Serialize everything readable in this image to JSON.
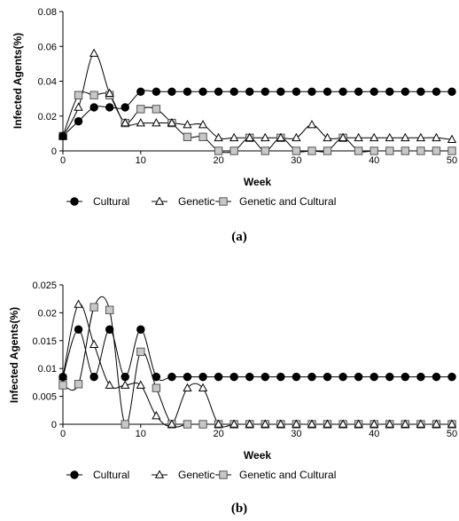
{
  "chart_data": [
    {
      "type": "line",
      "caption": "(a)",
      "xlabel": "Week",
      "ylabel": "Infected Agents(%)",
      "xlim": [
        0,
        50
      ],
      "ylim": [
        0,
        0.08
      ],
      "xticks": [
        0,
        10,
        20,
        30,
        40,
        50
      ],
      "yticks": [
        0,
        0.02,
        0.04,
        0.06,
        0.08
      ],
      "ytick_labels": [
        "0",
        "0.02",
        "0.04",
        "0.06",
        "0.08"
      ],
      "grid": false,
      "legend": "bottom",
      "x": [
        0,
        2,
        4,
        6,
        8,
        10,
        12,
        14,
        16,
        18,
        20,
        22,
        24,
        26,
        28,
        30,
        32,
        34,
        36,
        38,
        40,
        42,
        44,
        46,
        48,
        50
      ],
      "series": [
        {
          "name": "Cultural",
          "marker": "circle",
          "values": [
            0.0085,
            0.017,
            0.025,
            0.025,
            0.025,
            0.034,
            0.034,
            0.034,
            0.034,
            0.034,
            0.034,
            0.034,
            0.034,
            0.034,
            0.034,
            0.034,
            0.034,
            0.034,
            0.034,
            0.034,
            0.034,
            0.034,
            0.034,
            0.034,
            0.034,
            0.034
          ]
        },
        {
          "name": "Genetic",
          "marker": "triangle",
          "values": [
            0.0085,
            0.025,
            0.056,
            0.033,
            0.016,
            0.016,
            0.016,
            0.016,
            0.015,
            0.015,
            0.0075,
            0.0075,
            0.0075,
            0.0075,
            0.0075,
            0.0075,
            0.015,
            0.0075,
            0.0075,
            0.0075,
            0.0075,
            0.0075,
            0.0075,
            0.0075,
            0.0075,
            0.0065
          ]
        },
        {
          "name": "Genetic and Cultural",
          "marker": "square",
          "values": [
            0.0085,
            0.032,
            0.032,
            0.032,
            0.016,
            0.024,
            0.024,
            0.016,
            0.008,
            0.008,
            0,
            0,
            0.0075,
            0,
            0.0075,
            0,
            0,
            0,
            0.0075,
            0,
            0,
            0,
            0,
            0,
            0,
            0
          ]
        }
      ]
    },
    {
      "type": "line",
      "caption": "(b)",
      "xlabel": "Week",
      "ylabel": "Infected Agents(%)",
      "xlim": [
        0,
        50
      ],
      "ylim": [
        0,
        0.025
      ],
      "xticks": [
        0,
        10,
        20,
        30,
        40,
        50
      ],
      "yticks": [
        0,
        0.005,
        0.01,
        0.015,
        0.02,
        0.025
      ],
      "ytick_labels": [
        "0",
        "0.005",
        "0.01",
        "0.015",
        "0.02",
        "0.025"
      ],
      "grid": false,
      "legend": "bottom",
      "x": [
        0,
        2,
        4,
        6,
        8,
        10,
        12,
        14,
        16,
        18,
        20,
        22,
        24,
        26,
        28,
        30,
        32,
        34,
        36,
        38,
        40,
        42,
        44,
        46,
        48,
        50
      ],
      "series": [
        {
          "name": "Cultural",
          "marker": "circle",
          "values": [
            0.0085,
            0.017,
            0.0085,
            0.017,
            0.0085,
            0.017,
            0.0085,
            0.0085,
            0.0085,
            0.0085,
            0.0085,
            0.0085,
            0.0085,
            0.0085,
            0.0085,
            0.0085,
            0.0085,
            0.0085,
            0.0085,
            0.0085,
            0.0085,
            0.0085,
            0.0085,
            0.0085,
            0.0085,
            0.0085
          ]
        },
        {
          "name": "Genetic",
          "marker": "triangle",
          "values": [
            0.0085,
            0.0215,
            0.0143,
            0.007,
            0.007,
            0.007,
            0.0015,
            0,
            0.0065,
            0.0065,
            0,
            0,
            0,
            0,
            0,
            0,
            0,
            0,
            0,
            0,
            0,
            0,
            0,
            0,
            0,
            0
          ]
        },
        {
          "name": "Genetic and Cultural",
          "marker": "square",
          "values": [
            0.007,
            0.0072,
            0.021,
            0.0205,
            0,
            0.013,
            0.0065,
            0,
            0,
            0,
            0,
            0,
            0,
            0,
            0,
            0,
            0,
            0,
            0,
            0,
            0,
            0,
            0,
            0,
            0,
            0
          ]
        }
      ]
    }
  ]
}
